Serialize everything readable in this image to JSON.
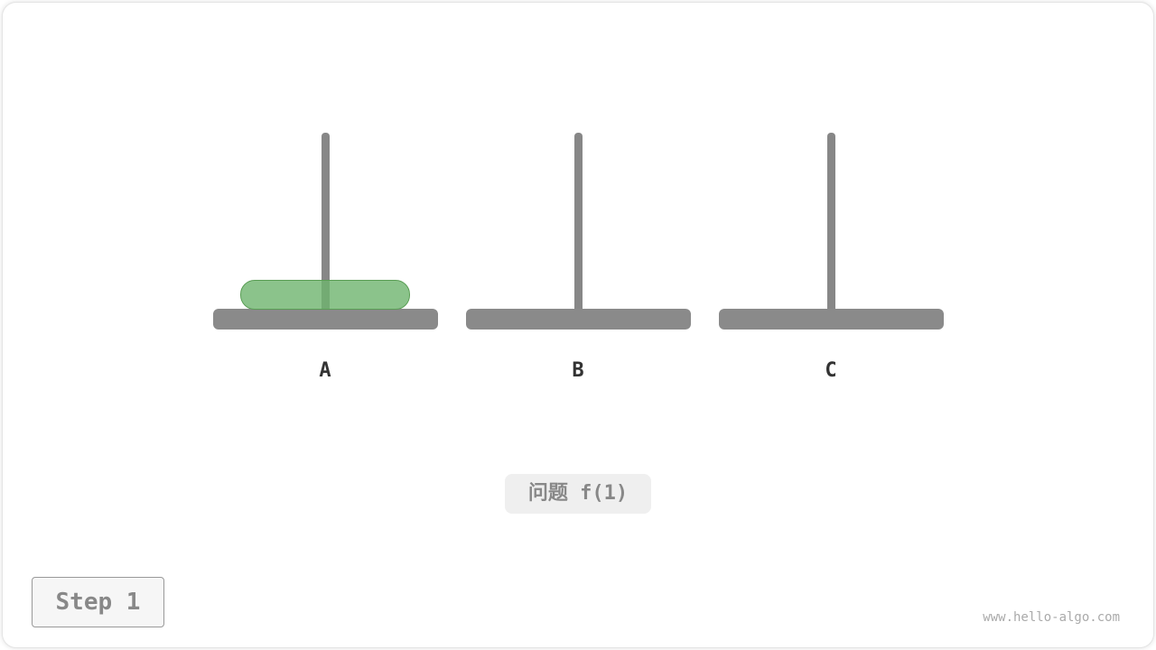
{
  "pegs": [
    {
      "label": "A"
    },
    {
      "label": "B"
    },
    {
      "label": "C"
    }
  ],
  "disks": [
    {
      "peg": "A",
      "color": "#86bf86"
    }
  ],
  "problem_label": "问题 f(1)",
  "step_label": "Step 1",
  "watermark": "www.hello-algo.com",
  "colors": {
    "peg": "#8a8a8a",
    "disk": "#86bf86",
    "disk_border": "#5a9e55"
  }
}
